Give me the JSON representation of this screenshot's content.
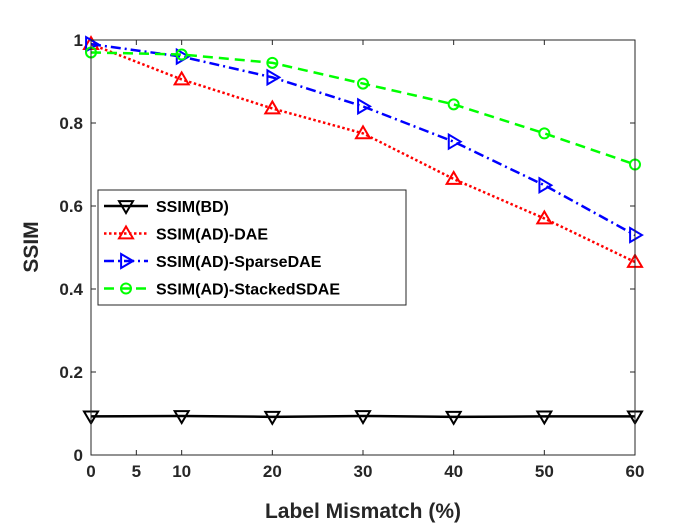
{
  "chart_data": {
    "type": "line",
    "xlabel": "Label Mismatch (%)",
    "ylabel": "SSIM",
    "xlim": [
      0,
      60
    ],
    "ylim": [
      0,
      1
    ],
    "xticks": [
      0,
      5,
      10,
      20,
      30,
      40,
      50,
      60
    ],
    "yticks": [
      0,
      0.2,
      0.4,
      0.6,
      0.8,
      1
    ],
    "ytick_labels": [
      "0",
      "0.2",
      "0.4",
      "0.6",
      "0.8",
      "1"
    ],
    "grid": false,
    "legend_position": "left-middle",
    "x": [
      0,
      10,
      20,
      30,
      40,
      50,
      60
    ],
    "series": [
      {
        "name": "SSIM(BD)",
        "values": [
          0.093,
          0.094,
          0.092,
          0.094,
          0.092,
          0.093,
          0.093
        ],
        "color": "#000000",
        "style": "solid",
        "marker": "triangle-down"
      },
      {
        "name": "SSIM(AD)-DAE",
        "values": [
          0.99,
          0.905,
          0.835,
          0.775,
          0.665,
          0.57,
          0.465
        ],
        "color": "#ff0000",
        "style": "dotted",
        "marker": "triangle-up"
      },
      {
        "name": "SSIM(AD)-SparseDAE",
        "values": [
          0.99,
          0.96,
          0.91,
          0.84,
          0.755,
          0.65,
          0.53
        ],
        "color": "#0000ff",
        "style": "dashdot",
        "marker": "triangle-right"
      },
      {
        "name": "SSIM(AD)-StackedSDAE",
        "values": [
          0.97,
          0.965,
          0.945,
          0.895,
          0.845,
          0.775,
          0.7
        ],
        "color": "#00ff00",
        "style": "dashed",
        "marker": "circle"
      }
    ]
  }
}
